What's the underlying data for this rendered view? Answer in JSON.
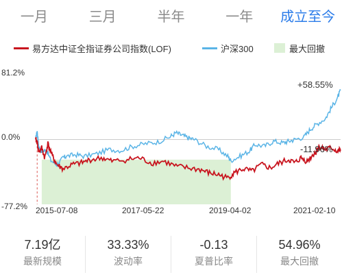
{
  "tabs": [
    {
      "label": "一月",
      "active": false
    },
    {
      "label": "三月",
      "active": false
    },
    {
      "label": "半年",
      "active": false
    },
    {
      "label": "一年",
      "active": false
    },
    {
      "label": "成立至今",
      "active": true
    }
  ],
  "legend": {
    "fund": "易方达中证全指证券公司指数(LOF)",
    "index": "沪深300",
    "drawdown": "最大回撤"
  },
  "colors": {
    "fund": "#c8141e",
    "index": "#5ab4e6",
    "drawdown": "#dcf0d5",
    "accent": "#2b7ce9"
  },
  "chart_data": {
    "type": "line",
    "y_ticks": [
      "81.2%",
      "0.0%",
      "-77.2%"
    ],
    "ylim": [
      -77.2,
      81.2
    ],
    "x_ticks": [
      "2015-07-08",
      "2017-05-22",
      "2019-04-02",
      "2021-02-10"
    ],
    "end_labels": {
      "index": "+58.55%",
      "fund": "-11.96%"
    },
    "series": [
      {
        "name": "沪深300",
        "points": [
          [
            0.0,
            0
          ],
          [
            0.005,
            10
          ],
          [
            0.01,
            -8
          ],
          [
            0.02,
            -15
          ],
          [
            0.035,
            -12
          ],
          [
            0.05,
            -25
          ],
          [
            0.07,
            -30
          ],
          [
            0.09,
            -22
          ],
          [
            0.1,
            -20
          ],
          [
            0.13,
            -18
          ],
          [
            0.16,
            -20
          ],
          [
            0.2,
            -17
          ],
          [
            0.24,
            -12
          ],
          [
            0.28,
            -13
          ],
          [
            0.32,
            -8
          ],
          [
            0.36,
            -5
          ],
          [
            0.4,
            -3
          ],
          [
            0.44,
            3
          ],
          [
            0.46,
            8
          ],
          [
            0.48,
            5
          ],
          [
            0.5,
            2
          ],
          [
            0.52,
            0
          ],
          [
            0.56,
            -8
          ],
          [
            0.6,
            -12
          ],
          [
            0.63,
            -20
          ],
          [
            0.64,
            -25
          ],
          [
            0.67,
            -20
          ],
          [
            0.7,
            -14
          ],
          [
            0.72,
            -6
          ],
          [
            0.75,
            -8
          ],
          [
            0.78,
            -2
          ],
          [
            0.81,
            -4
          ],
          [
            0.83,
            -2
          ],
          [
            0.85,
            0
          ],
          [
            0.88,
            3
          ],
          [
            0.9,
            12
          ],
          [
            0.92,
            18
          ],
          [
            0.95,
            25
          ],
          [
            0.97,
            38
          ],
          [
            0.99,
            50
          ],
          [
            1.0,
            58.55
          ]
        ]
      },
      {
        "name": "易方达中证全指证券公司指数(LOF)",
        "points": [
          [
            0.0,
            0
          ],
          [
            0.005,
            -3
          ],
          [
            0.01,
            -15
          ],
          [
            0.02,
            -10
          ],
          [
            0.03,
            -22
          ],
          [
            0.04,
            -5
          ],
          [
            0.055,
            -20
          ],
          [
            0.07,
            -30
          ],
          [
            0.09,
            -35
          ],
          [
            0.12,
            -30
          ],
          [
            0.15,
            -28
          ],
          [
            0.18,
            -24
          ],
          [
            0.22,
            -22
          ],
          [
            0.25,
            -26
          ],
          [
            0.3,
            -24
          ],
          [
            0.34,
            -22
          ],
          [
            0.38,
            -28
          ],
          [
            0.42,
            -26
          ],
          [
            0.46,
            -32
          ],
          [
            0.5,
            -34
          ],
          [
            0.54,
            -36
          ],
          [
            0.57,
            -40
          ],
          [
            0.6,
            -42
          ],
          [
            0.63,
            -46
          ],
          [
            0.65,
            -40
          ],
          [
            0.68,
            -35
          ],
          [
            0.71,
            -38
          ],
          [
            0.74,
            -30
          ],
          [
            0.77,
            -34
          ],
          [
            0.8,
            -28
          ],
          [
            0.83,
            -24
          ],
          [
            0.85,
            -28
          ],
          [
            0.87,
            -22
          ],
          [
            0.89,
            -26
          ],
          [
            0.91,
            -18
          ],
          [
            0.92,
            -14
          ],
          [
            0.93,
            -8
          ],
          [
            0.95,
            -12
          ],
          [
            0.97,
            -10
          ],
          [
            0.99,
            -14
          ],
          [
            1.0,
            -11.96
          ]
        ]
      }
    ],
    "drawdown_range": [
      0.02,
      0.64
    ]
  },
  "stats": [
    {
      "value": "7.19亿",
      "label": "最新规模"
    },
    {
      "value": "33.33%",
      "label": "波动率"
    },
    {
      "value": "-0.13",
      "label": "夏普比率"
    },
    {
      "value": "54.96%",
      "label": "最大回撤"
    }
  ]
}
